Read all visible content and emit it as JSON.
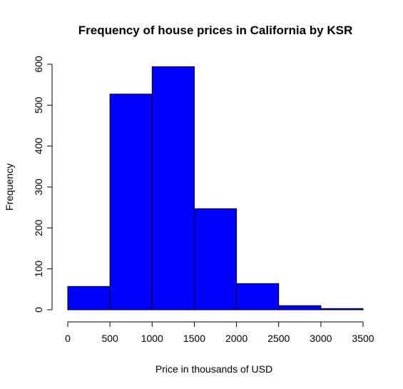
{
  "chart_data": {
    "type": "bar",
    "title": "Frequency of house prices in California by KSR",
    "xlabel": "Price in thousands of USD",
    "ylabel": "Frequency",
    "bins": [
      {
        "from": 0,
        "to": 500,
        "count": 57
      },
      {
        "from": 500,
        "to": 1000,
        "count": 527
      },
      {
        "from": 1000,
        "to": 1500,
        "count": 594
      },
      {
        "from": 1500,
        "to": 2000,
        "count": 247
      },
      {
        "from": 2000,
        "to": 2500,
        "count": 64
      },
      {
        "from": 2500,
        "to": 3000,
        "count": 10
      },
      {
        "from": 3000,
        "to": 3500,
        "count": 3
      }
    ],
    "xlim": [
      0,
      3500
    ],
    "ylim": [
      0,
      600
    ],
    "xticks": [
      "0",
      "500",
      "1000",
      "1500",
      "2000",
      "2500",
      "3000",
      "3500"
    ],
    "yticks": [
      "0",
      "100",
      "200",
      "300",
      "400",
      "500",
      "600"
    ],
    "bar_color": "#0000ff",
    "grid": false
  }
}
